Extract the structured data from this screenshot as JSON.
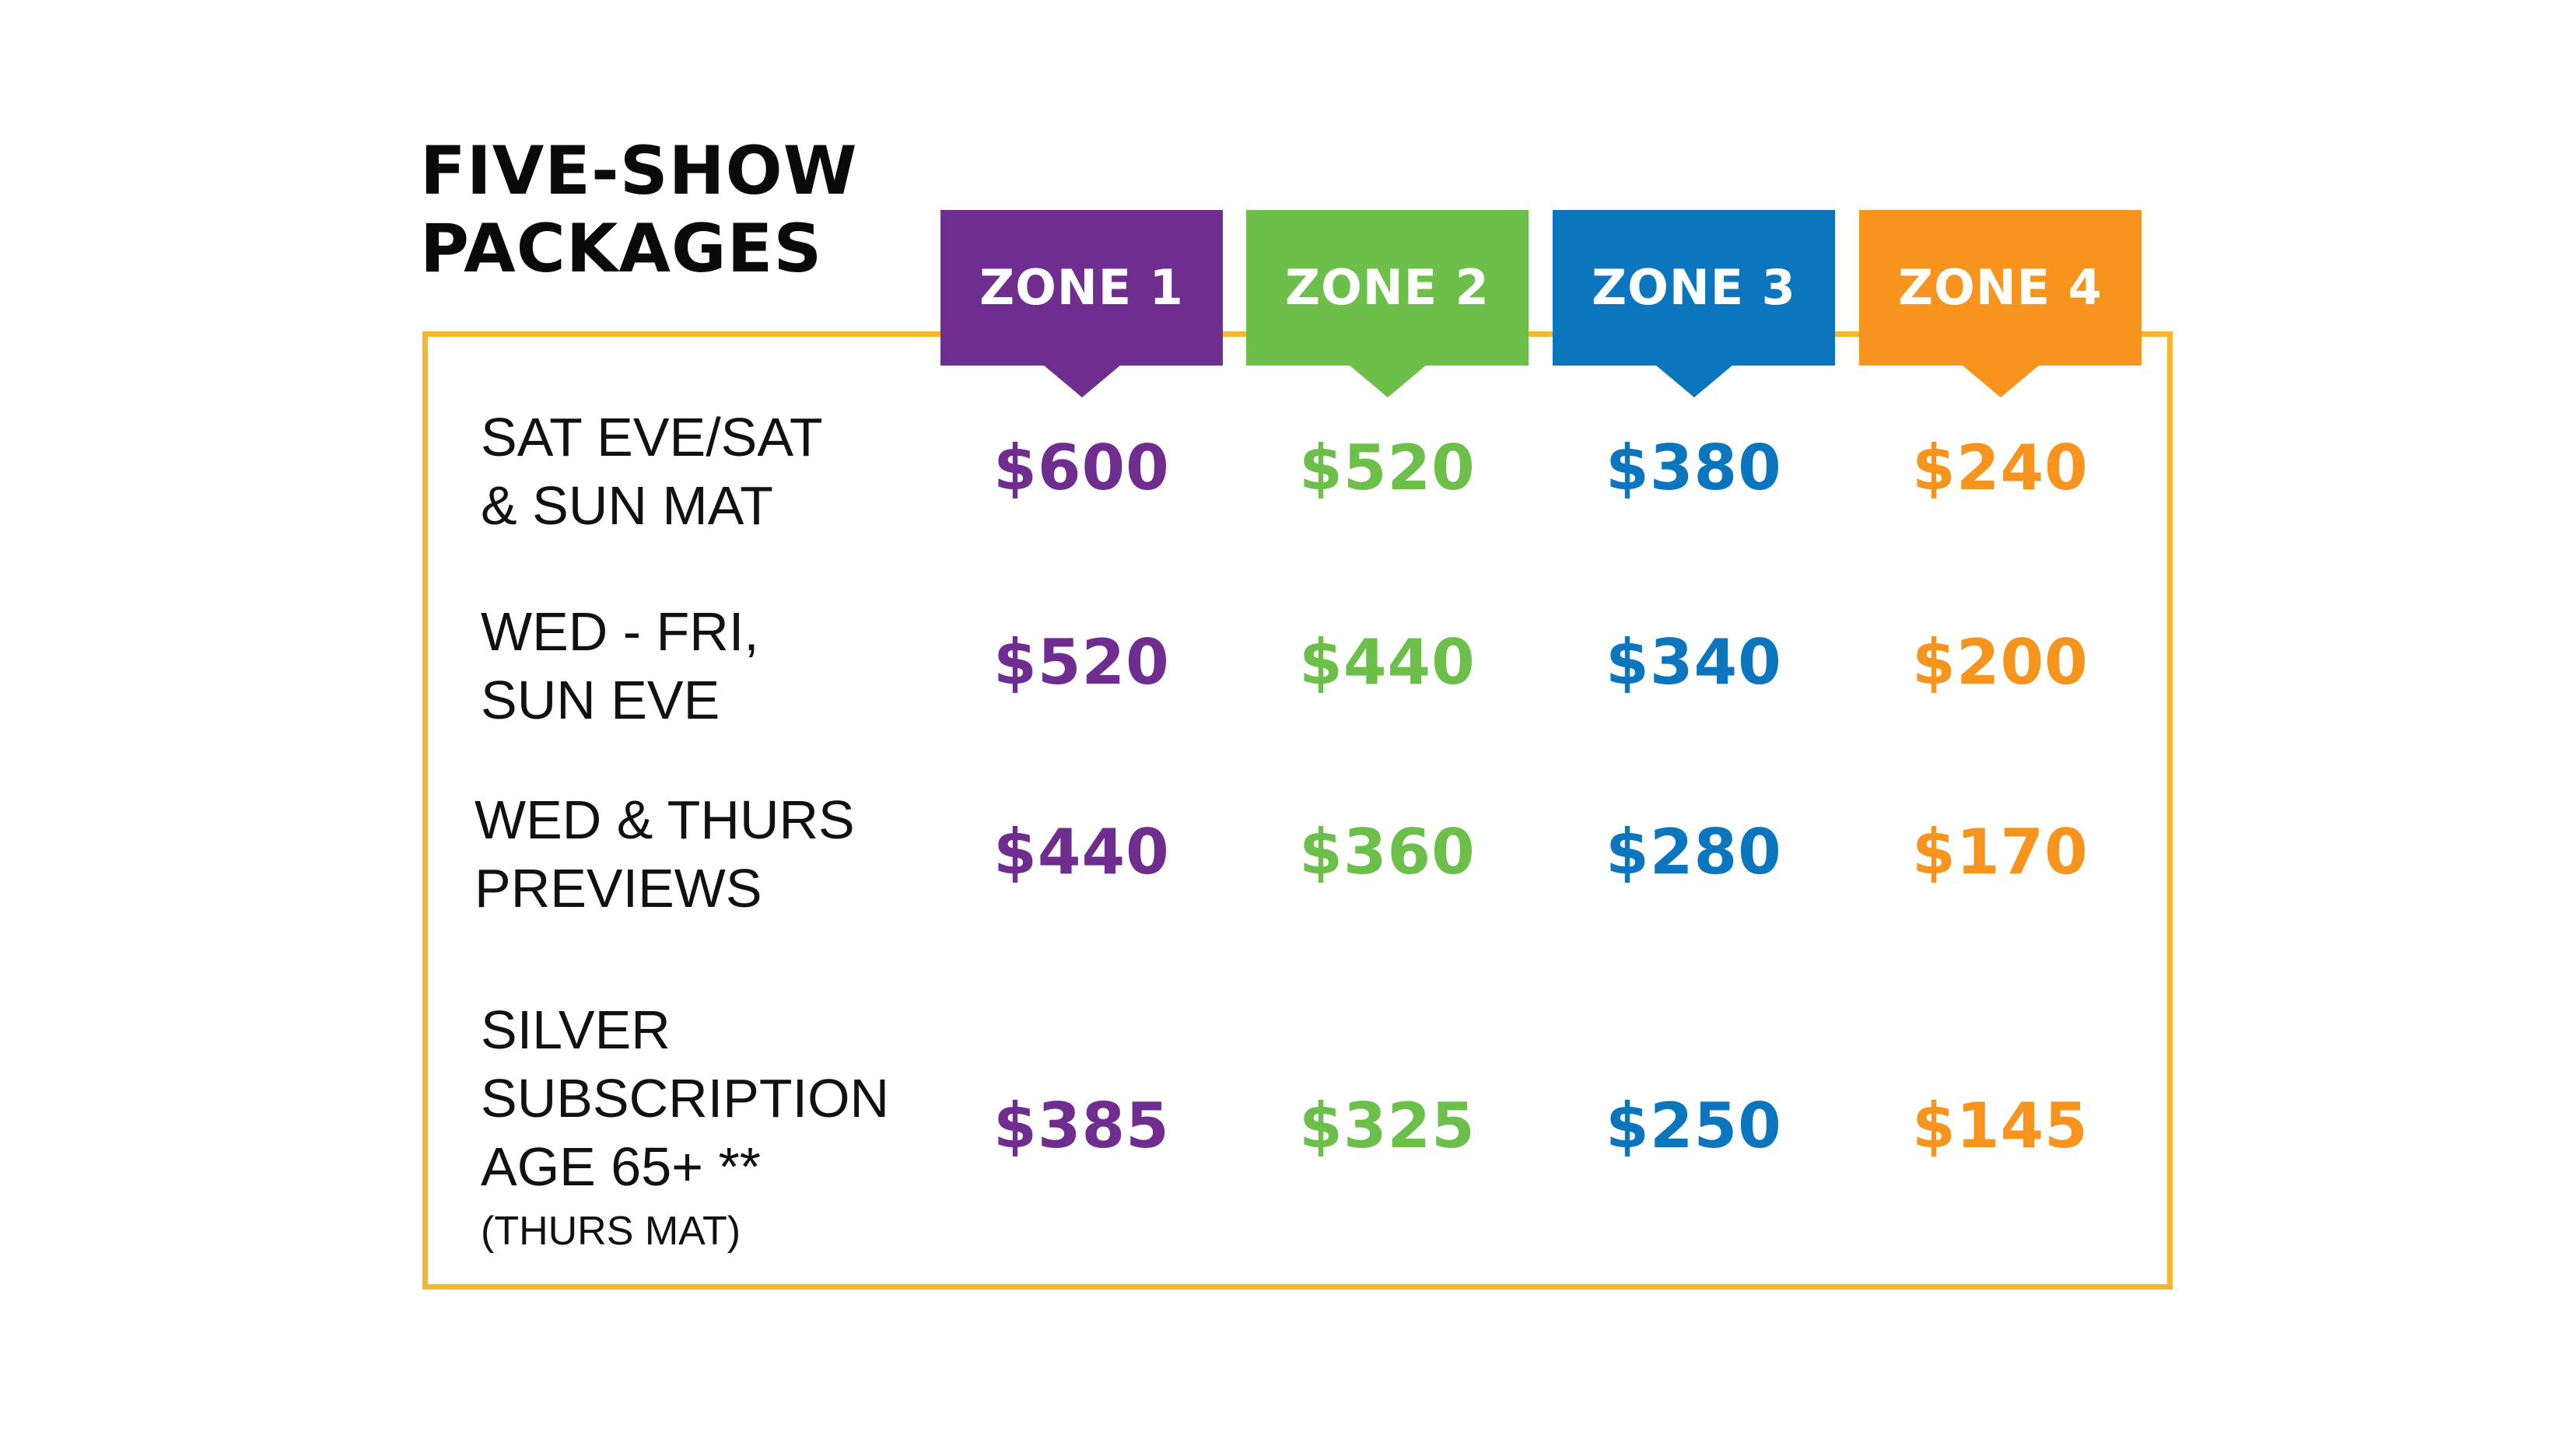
{
  "title": {
    "line1": "FIVE-SHOW",
    "line2": "PACKAGES"
  },
  "colors": {
    "zone1": "#6e2d8f",
    "zone2": "#6cc04a",
    "zone3": "#0b76be",
    "zone4": "#f7941d",
    "frame": "#f4b731",
    "text": "#111111"
  },
  "zones": [
    {
      "label": "ZONE 1"
    },
    {
      "label": "ZONE 2"
    },
    {
      "label": "ZONE 3"
    },
    {
      "label": "ZONE 4"
    }
  ],
  "rows": [
    {
      "label_lines": [
        "SAT EVE/SAT",
        "& SUN MAT"
      ],
      "prices": [
        "$600",
        "$520",
        "$380",
        "$240"
      ]
    },
    {
      "label_lines": [
        "WED - FRI,",
        "SUN EVE"
      ],
      "prices": [
        "$520",
        "$440",
        "$340",
        "$200"
      ]
    },
    {
      "label_lines": [
        "WED & THURS",
        "PREVIEWS"
      ],
      "prices": [
        "$440",
        "$360",
        "$280",
        "$170"
      ]
    },
    {
      "label_lines": [
        "SILVER",
        "SUBSCRIPTION",
        "AGE 65+ **"
      ],
      "note": "(THURS MAT)",
      "prices": [
        "$385",
        "$325",
        "$250",
        "$145"
      ]
    }
  ]
}
